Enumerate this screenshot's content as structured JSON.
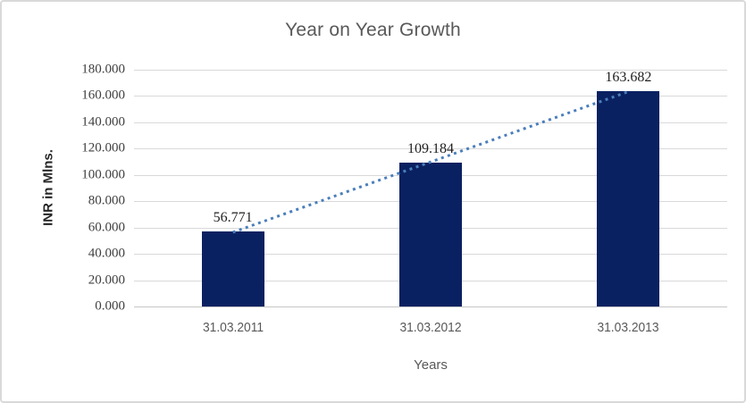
{
  "chart_data": {
    "type": "bar",
    "title": "Year on Year Growth",
    "xlabel": "Years",
    "ylabel": "INR in Mlns.",
    "categories": [
      "31.03.2011",
      "31.03.2012",
      "31.03.2013"
    ],
    "values": [
      56.771,
      109.184,
      163.682
    ],
    "data_labels": [
      "56.771",
      "109.184",
      "163.682"
    ],
    "ylim": [
      0,
      180
    ],
    "ytick_step": 20,
    "ytick_decimals": 3,
    "grid": "horizontal",
    "legend": "none",
    "trendline": {
      "type": "linear",
      "style": "dotted",
      "start_value": 56.42,
      "end_value": 163.34
    },
    "colors": {
      "bar": "#0a2161",
      "trendline": "#4a7ebb",
      "gridline": "#d9d9d9",
      "axis_line": "#c6c6c6",
      "title_text": "#595959",
      "axis_title_text": "#262626",
      "y_tick_text": "#404040",
      "x_tick_text": "#595959",
      "data_label_text": "#1f1f1f",
      "frame_border": "#d9d9d9",
      "background": "#ffffff"
    }
  }
}
